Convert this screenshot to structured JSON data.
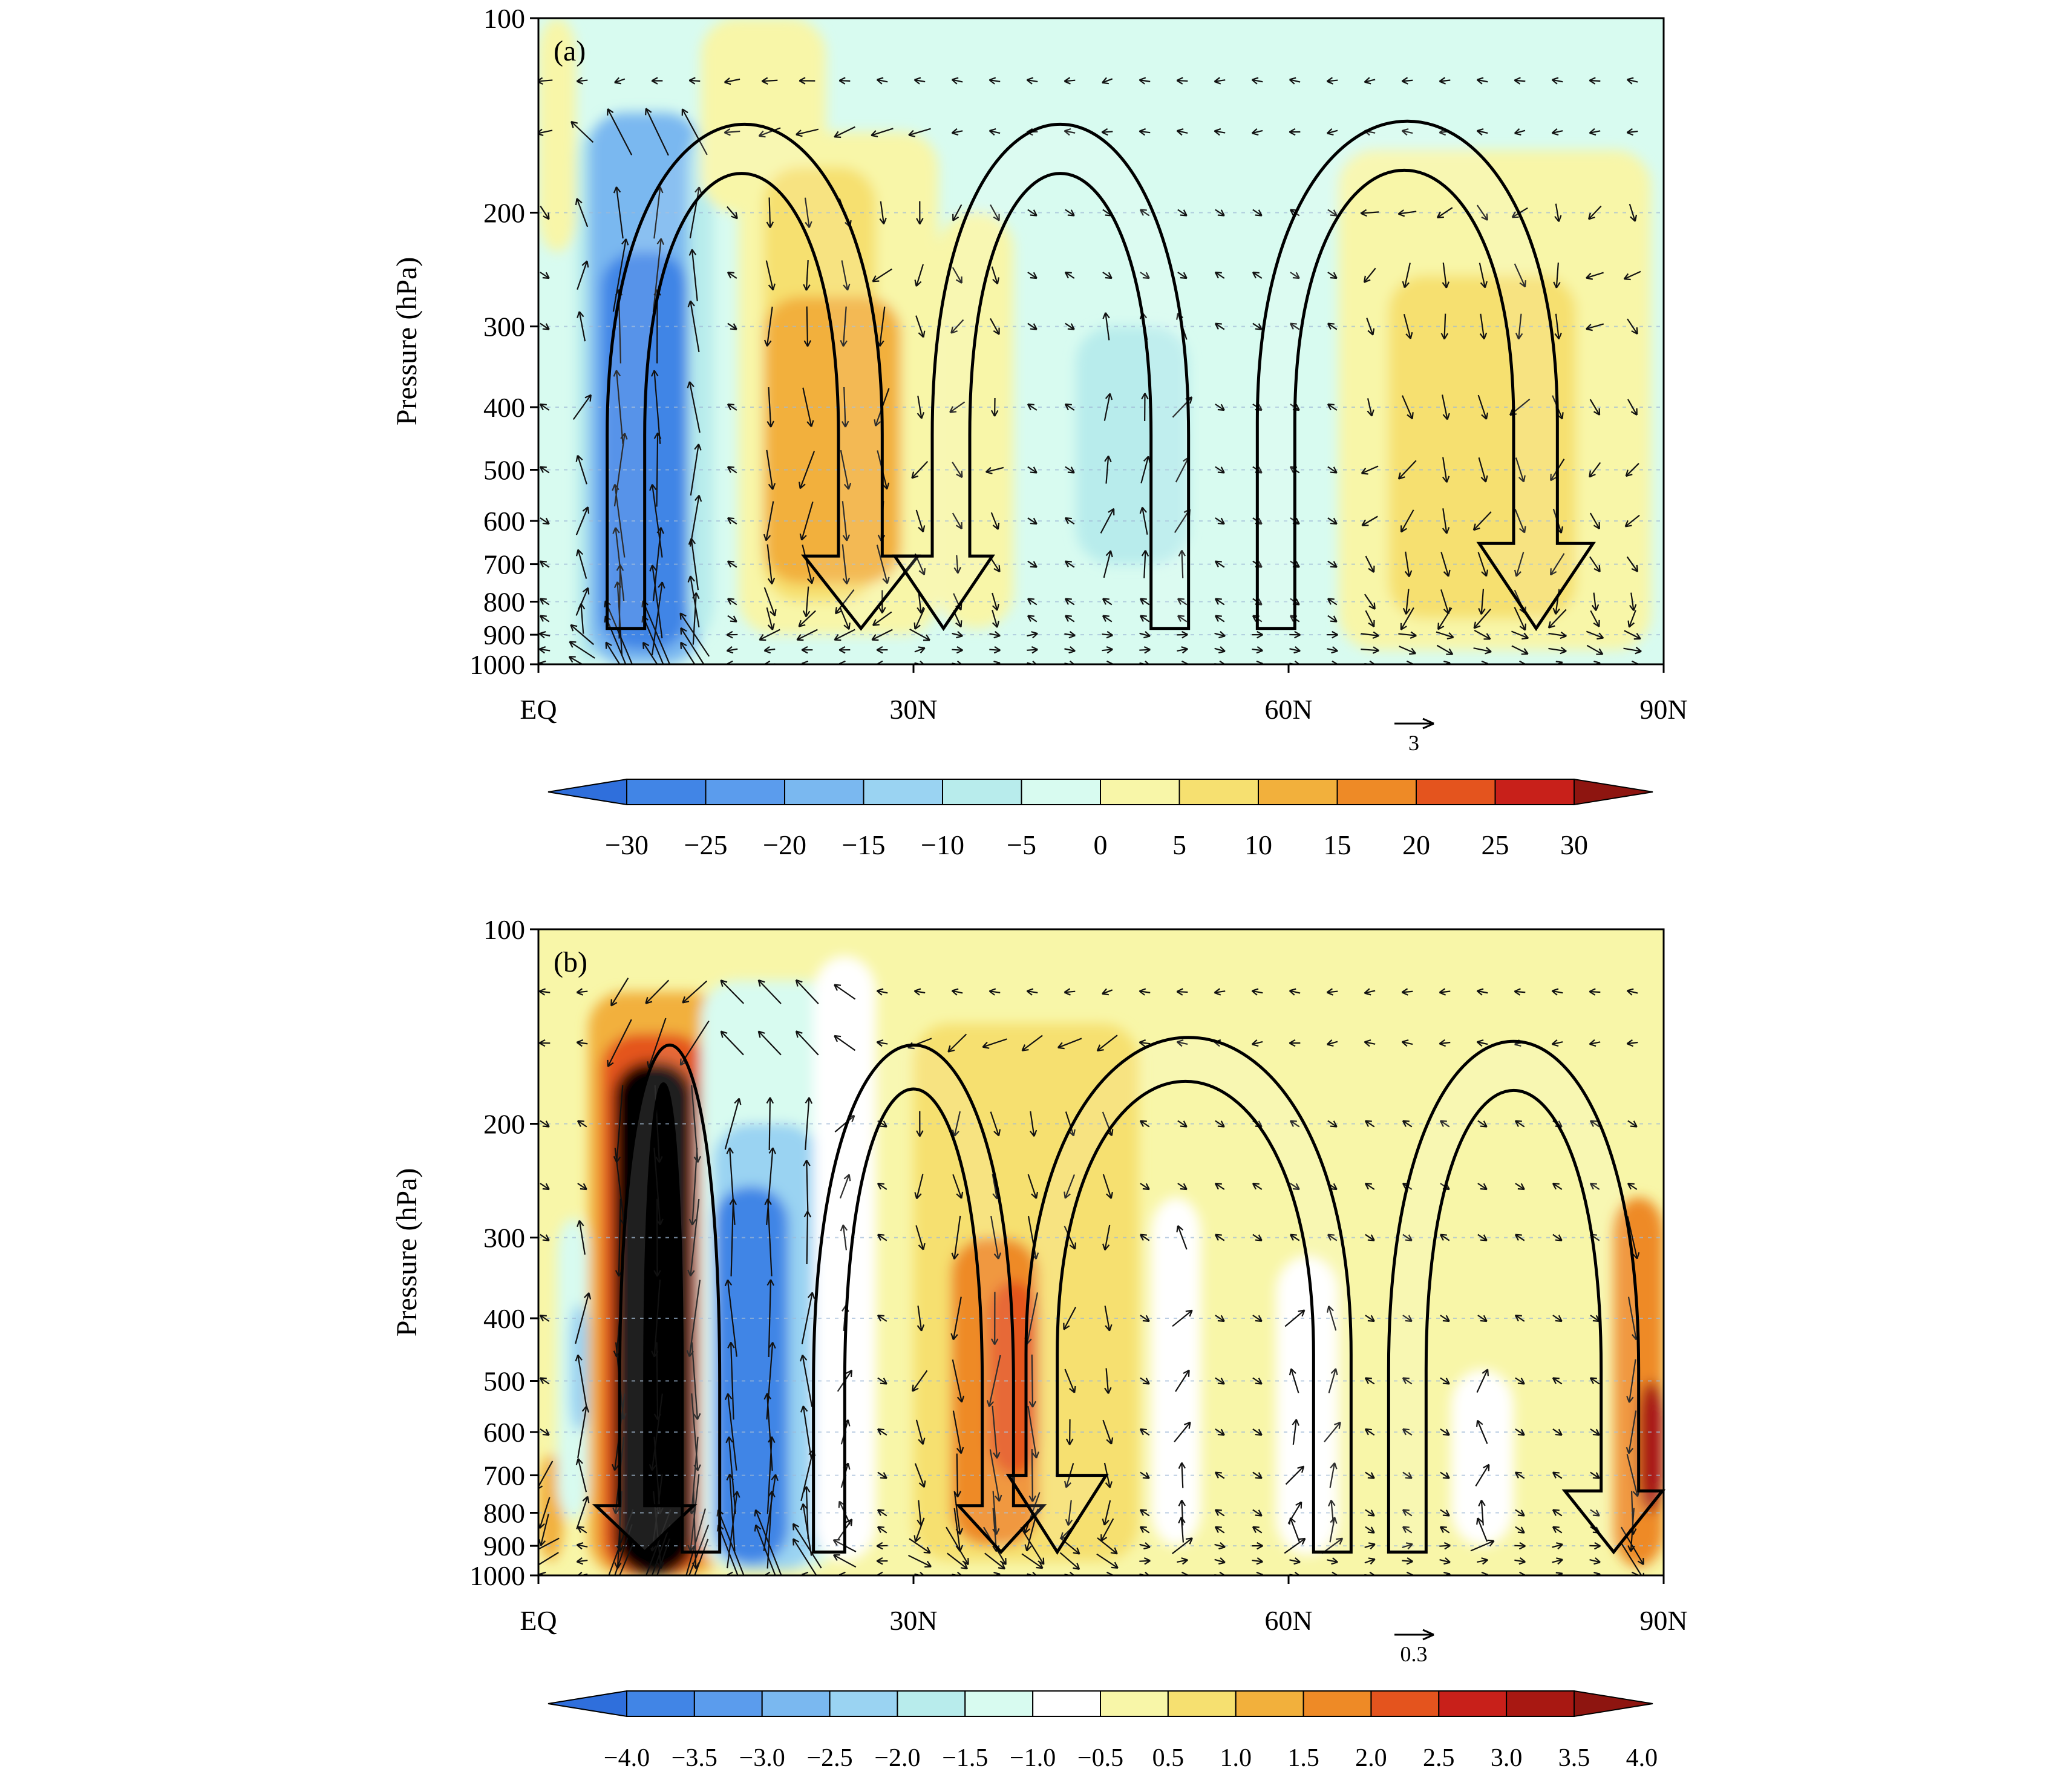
{
  "chart_data": [
    {
      "type": "heatmap",
      "panel_label": "(a)",
      "ylabel": "Pressure (hPa)",
      "y_scale": "log",
      "y_reversed": true,
      "y_ticks": [
        100,
        200,
        300,
        400,
        500,
        600,
        700,
        800,
        900,
        1000
      ],
      "x_ticks": [
        {
          "value": 0,
          "label": "EQ"
        },
        {
          "value": 30,
          "label": "30N"
        },
        {
          "value": 60,
          "label": "60N"
        },
        {
          "value": 90,
          "label": "90N"
        }
      ],
      "xlim": [
        0,
        90
      ],
      "ylim": [
        1000,
        100
      ],
      "vector_reference": {
        "label": "3"
      },
      "colorbar": {
        "levels": [
          -30,
          -25,
          -20,
          -15,
          -10,
          -5,
          0,
          5,
          10,
          15,
          20,
          25,
          30
        ],
        "colors": [
          "#2f6fdc",
          "#4185e6",
          "#5b9ced",
          "#7ab8f0",
          "#9ad3f2",
          "#b8ecec",
          "#d8fbf0",
          "#f8f6a8",
          "#f6e070",
          "#f2b03c",
          "#ee8a26",
          "#e4541e",
          "#c8201a",
          "#8e1510"
        ]
      },
      "shaded_regions": [
        {
          "lat": [
            0,
            3
          ],
          "p": [
            100,
            230
          ],
          "value": 2
        },
        {
          "lat": [
            3,
            5
          ],
          "p": [
            150,
            1000
          ],
          "value": -8
        },
        {
          "lat": [
            4,
            13
          ],
          "p": [
            140,
            1000
          ],
          "value": -17
        },
        {
          "lat": [
            5,
            12
          ],
          "p": [
            230,
            950
          ],
          "value": -26
        },
        {
          "lat": [
            12,
            14
          ],
          "p": [
            150,
            900
          ],
          "value": -7
        },
        {
          "lat": [
            13,
            23
          ],
          "p": [
            100,
            200
          ],
          "value": 2
        },
        {
          "lat": [
            16,
            32
          ],
          "p": [
            150,
            900
          ],
          "value": 5
        },
        {
          "lat": [
            18,
            27
          ],
          "p": [
            170,
            800
          ],
          "value": 8
        },
        {
          "lat": [
            18,
            29
          ],
          "p": [
            270,
            750
          ],
          "value": 12
        },
        {
          "lat": [
            32,
            38
          ],
          "p": [
            200,
            880
          ],
          "value": 3
        },
        {
          "lat": [
            43,
            52
          ],
          "p": [
            300,
            700
          ],
          "value": -7
        },
        {
          "lat": [
            64,
            89
          ],
          "p": [
            160,
            950
          ],
          "value": 3
        },
        {
          "lat": [
            68,
            83
          ],
          "p": [
            250,
            850
          ],
          "value": 6
        }
      ],
      "arrows": [
        {
          "up_lat": [
            5.5,
            8.5
          ],
          "down_lat": [
            24,
            27.5
          ],
          "head_lat": 25.8,
          "top_p": 110,
          "bottom_p": 880,
          "head_start_p": 680,
          "head_tip_p": 880
        },
        {
          "up_lat": [
            31.5,
            34.5
          ],
          "down_lat": [
            49,
            52
          ],
          "head_lat": 32.4,
          "top_p": 110,
          "bottom_p": 880,
          "head_start_p": 680,
          "head_tip_p": 880,
          "head_side": "left"
        },
        {
          "up_lat": [
            57.5,
            60.5
          ],
          "down_lat": [
            78,
            81.5
          ],
          "head_lat": 79.8,
          "top_p": 110,
          "bottom_p": 880,
          "head_start_p": 650,
          "head_tip_p": 880
        }
      ]
    },
    {
      "type": "heatmap",
      "panel_label": "(b)",
      "ylabel": "Pressure (hPa)",
      "y_scale": "log",
      "y_reversed": true,
      "y_ticks": [
        100,
        200,
        300,
        400,
        500,
        600,
        700,
        800,
        900,
        1000
      ],
      "x_ticks": [
        {
          "value": 0,
          "label": "EQ"
        },
        {
          "value": 30,
          "label": "30N"
        },
        {
          "value": 60,
          "label": "60N"
        },
        {
          "value": 90,
          "label": "90N"
        }
      ],
      "xlim": [
        0,
        90
      ],
      "ylim": [
        1000,
        100
      ],
      "vector_reference": {
        "label": "0.3"
      },
      "colorbar": {
        "levels": [
          -4.0,
          -3.5,
          -3.0,
          -2.5,
          -2.0,
          -1.5,
          -1.0,
          -0.5,
          0.5,
          1.0,
          1.5,
          2.0,
          2.5,
          3.0,
          3.5,
          4.0
        ],
        "labels": [
          "−4.0",
          "−3.5",
          "−3.0",
          "−2.5",
          "−2.0",
          "−1.5",
          "−1.0",
          "−0.5",
          "0.5",
          "1.0",
          "1.5",
          "2.0",
          "2.5",
          "3.0",
          "3.5",
          "4.0"
        ],
        "colors": [
          "#2f6fdc",
          "#4185e6",
          "#5b9ced",
          "#7ab8f0",
          "#9ad3f2",
          "#b8ecec",
          "#d8fbf0",
          "#ffffff",
          "#f8f6a8",
          "#f6e070",
          "#f2b03c",
          "#ee8a26",
          "#e4541e",
          "#c8201a",
          "#a81812",
          "#8e1510"
        ]
      },
      "shaded_regions": [
        {
          "lat": [
            0,
            2
          ],
          "p": [
            650,
            950
          ],
          "value": 1.2
        },
        {
          "lat": [
            1.5,
            4
          ],
          "p": [
            280,
            820
          ],
          "value": -1.3
        },
        {
          "lat": [
            2.5,
            4
          ],
          "p": [
            380,
            600
          ],
          "value": -2.3
        },
        {
          "lat": [
            4,
            15
          ],
          "p": [
            125,
            1000
          ],
          "value": 1.2
        },
        {
          "lat": [
            5,
            13.5
          ],
          "p": [
            145,
            1000
          ],
          "value": 2.3
        },
        {
          "lat": [
            6,
            12.5
          ],
          "p": [
            160,
            1000
          ],
          "value": 4.2
        },
        {
          "lat": [
            13,
            24
          ],
          "p": [
            120,
            980
          ],
          "value": -1.2
        },
        {
          "lat": [
            14,
            22.5
          ],
          "p": [
            200,
            980
          ],
          "value": -2.3
        },
        {
          "lat": [
            14,
            20
          ],
          "p": [
            250,
            960
          ],
          "value": -3.7
        },
        {
          "lat": [
            22,
            27
          ],
          "p": [
            110,
            950
          ],
          "value": -0.8
        },
        {
          "lat": [
            30,
            48
          ],
          "p": [
            140,
            950
          ],
          "value": 0.8
        },
        {
          "lat": [
            33,
            40
          ],
          "p": [
            300,
            900
          ],
          "value": 1.8
        },
        {
          "lat": [
            36,
            40
          ],
          "p": [
            350,
            700
          ],
          "value": 2.3
        },
        {
          "lat": [
            49,
            53
          ],
          "p": [
            260,
            900
          ],
          "value": -0.8
        },
        {
          "lat": [
            59,
            64
          ],
          "p": [
            320,
            930
          ],
          "value": -0.8
        },
        {
          "lat": [
            73,
            78
          ],
          "p": [
            480,
            900
          ],
          "value": -0.8
        },
        {
          "lat": [
            86,
            90
          ],
          "p": [
            260,
            970
          ],
          "value": 1.8
        },
        {
          "lat": [
            88,
            90
          ],
          "p": [
            500,
            800
          ],
          "value": 3.2
        }
      ],
      "arrows": [
        {
          "up_lat": [
            6.5,
            8.5
          ],
          "down_lat": [
            11.5,
            14.5
          ],
          "head_lat": 8.5,
          "top_p": 110,
          "bottom_p": 920,
          "head_start_p": 780,
          "head_tip_p": 920,
          "head_side": "left"
        },
        {
          "up_lat": [
            22,
            24.5
          ],
          "down_lat": [
            35.5,
            38
          ],
          "head_lat": 37,
          "top_p": 110,
          "bottom_p": 920,
          "head_start_p": 780,
          "head_tip_p": 920
        },
        {
          "up_lat": [
            39,
            41.5
          ],
          "down_lat": [
            62,
            65
          ],
          "head_lat": 41.5,
          "top_p": 110,
          "bottom_p": 920,
          "head_start_p": 700,
          "head_tip_p": 920,
          "head_side": "left"
        },
        {
          "up_lat": [
            68,
            71
          ],
          "down_lat": [
            85,
            88
          ],
          "head_lat": 86,
          "top_p": 110,
          "bottom_p": 920,
          "head_start_p": 740,
          "head_tip_p": 920
        }
      ]
    }
  ]
}
